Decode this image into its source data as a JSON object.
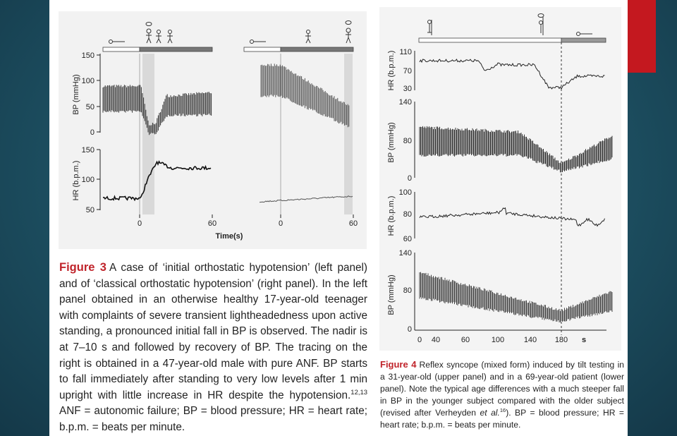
{
  "colors": {
    "background": "#1d5062",
    "accent_red": "#c4181f",
    "caption_label": "#c0242b",
    "panel": "#ffffff"
  },
  "figure3": {
    "label": "Figure 3",
    "caption_parts": [
      "A case of ‘initial orthostatic hypotension’ (left panel) and of ‘classical orthostatic hypotension’ (right panel). In the left panel obtained in an otherwise healthy 17-year-old teenager with complaints of severe transient lightheadedness upon active standing, a pronounced initial fall in BP is observed. The nadir is at 7–10 s and followed by recovery of BP. The tracing on the right is obtained in a 47-year-old male with pure ANF. BP starts to fall immediately after standing to very low levels after 1 min upright with little increase in HR despite the hypotension.",
      "12,13",
      " ANF = autonomic failure; BP = blood pressure; HR = heart rate; b.p.m. = beats per minute."
    ],
    "bp_label": "BP (mmHg)",
    "hr_label": "HR (b.p.m.)",
    "bp_ticks": [
      "150",
      "100",
      "50",
      "0"
    ],
    "hr_ticks": [
      "150",
      "100",
      "50"
    ],
    "time_ticks_left": [
      "0",
      "60"
    ],
    "time_ticks_right": [
      "0",
      "60"
    ],
    "time_axis_label": "Time(s)"
  },
  "figure4": {
    "label": "Figure 4",
    "caption_parts": [
      "Reflex syncope (mixed form) induced by tilt testing in a 31-year-old (upper panel) and in a 69-year-old patient (lower panel). Note the typical age differences with a much steeper fall in BP in the younger subject compared with the older subject (revised after Verheyden",
      " et al.",
      "16",
      "). BP = blood pressure; HR = heart rate; b.p.m. = beats per minute."
    ],
    "hr_label": "HR (b.p.m.)",
    "bp_label": "BP (mmHg)",
    "hr1_ticks": [
      "110",
      "70",
      "30"
    ],
    "bp1_ticks": [
      "140",
      "80",
      "0"
    ],
    "hr2_ticks": [
      "100",
      "80",
      "60"
    ],
    "bp2_ticks": [
      "140",
      "80",
      "0"
    ],
    "x_ticks": [
      "0",
      "40",
      "60",
      "100",
      "140",
      "180"
    ],
    "x_unit": "s"
  }
}
